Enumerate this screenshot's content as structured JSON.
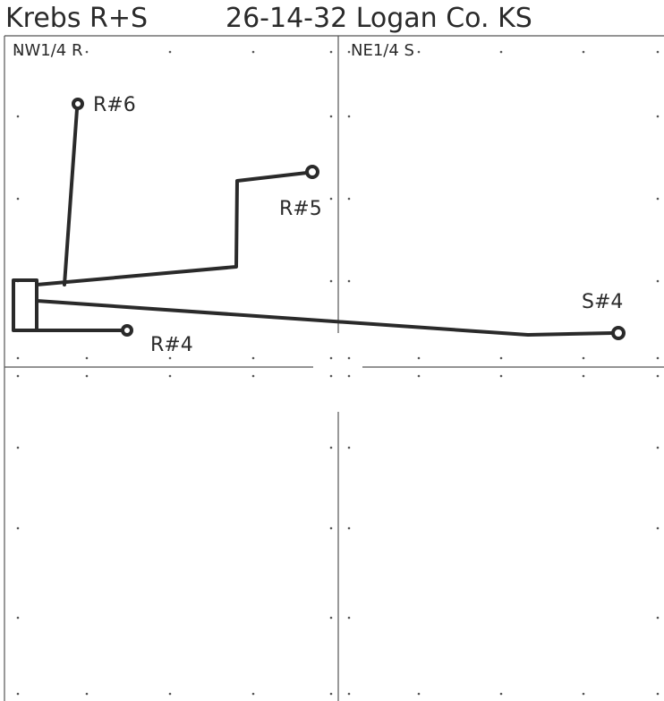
{
  "header": {
    "lease": "Krebs R+S",
    "location": "26-14-32 Logan Co. KS"
  },
  "quadrants": [
    {
      "label": "NW1/4 R"
    },
    {
      "label": "NE1/4 S"
    }
  ],
  "wells": [
    {
      "label": "R#6"
    },
    {
      "label": "R#5"
    },
    {
      "label": "R#4"
    },
    {
      "label": "S#4"
    }
  ]
}
